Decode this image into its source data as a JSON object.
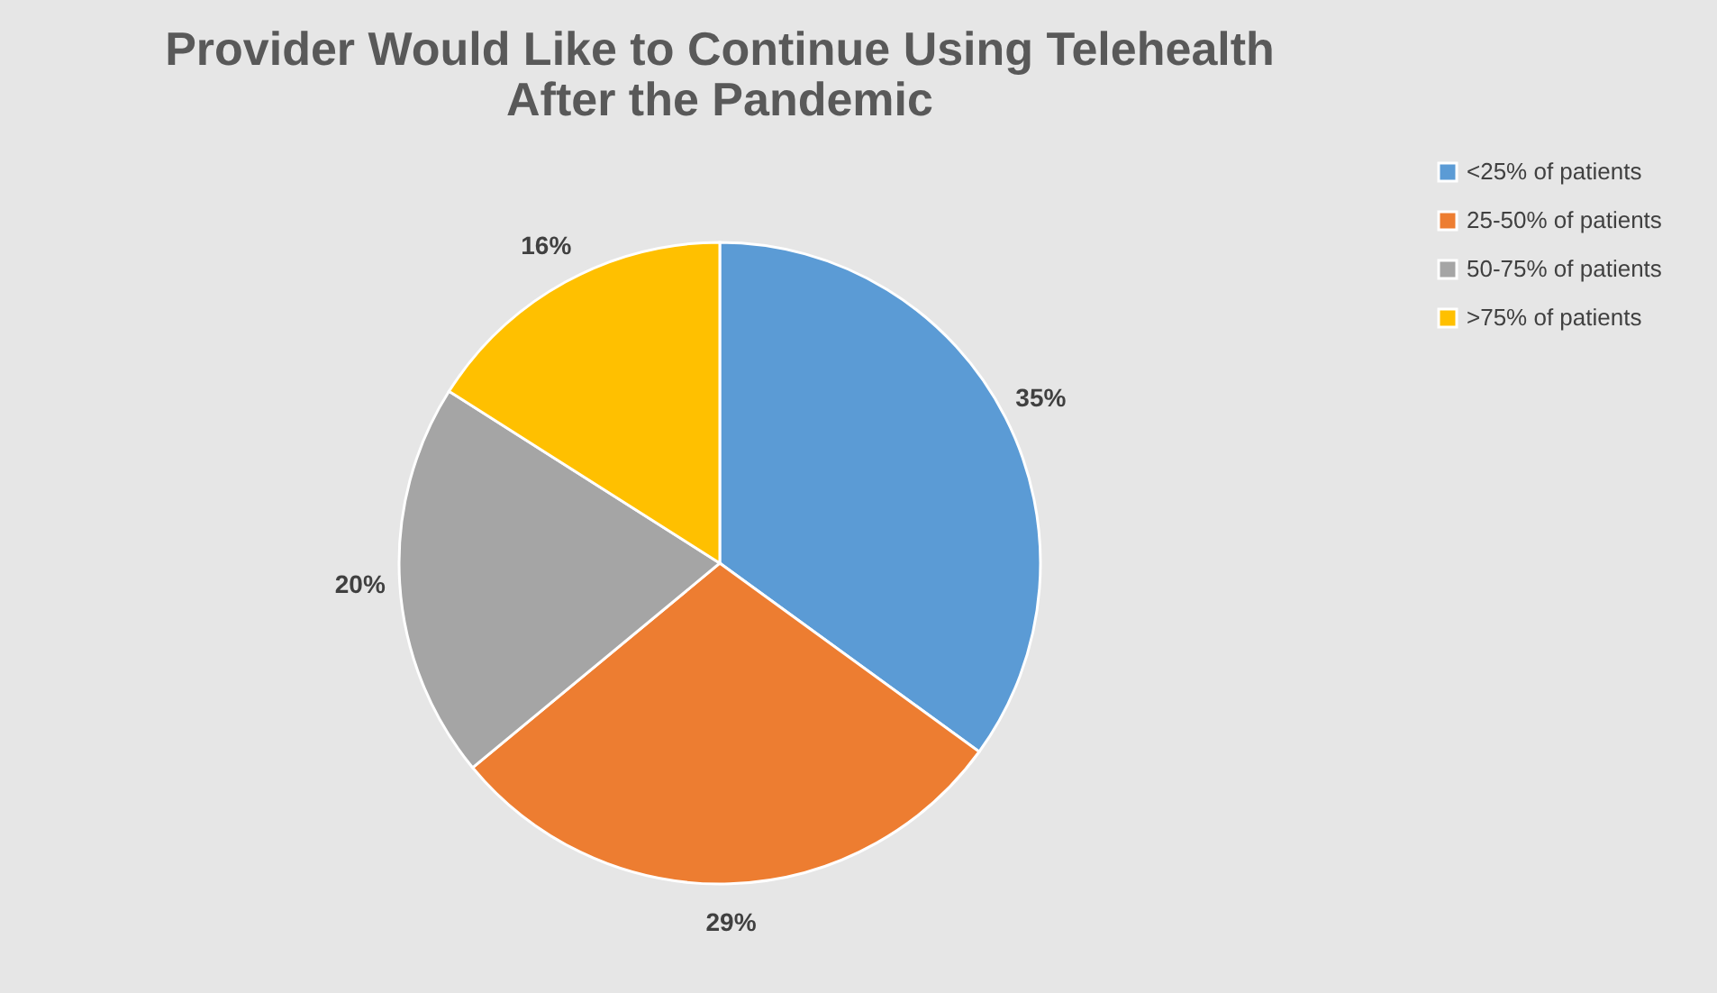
{
  "chart_data": {
    "type": "pie",
    "title": "Provider Would Like to Continue Using Telehealth After the Pandemic",
    "categories": [
      "<25% of patients",
      "25-50% of patients",
      "50-75% of patients",
      ">75% of patients"
    ],
    "values": [
      35,
      29,
      20,
      16
    ],
    "colors": [
      "#5b9bd5",
      "#ed7d31",
      "#a5a5a5",
      "#ffc000"
    ],
    "value_labels": [
      "35%",
      "29%",
      "20%",
      "16%"
    ],
    "legend": "right"
  }
}
